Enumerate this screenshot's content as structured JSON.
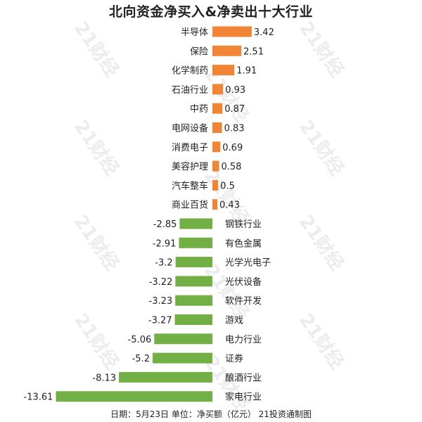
{
  "title": "北向资金净买入&净卖出十大行业",
  "footer": "日期：5月23日 单位：净买额（亿元） 21投资通制图",
  "watermark": "21财经",
  "colors": {
    "positive": "#ef8535",
    "negative": "#72b045"
  },
  "chart_data": {
    "type": "bar",
    "orientation": "horizontal",
    "title": "北向资金净买入&净卖出十大行业",
    "unit": "亿元",
    "categories": [
      "半导体",
      "保险",
      "化学制药",
      "石油行业",
      "中药",
      "电网设备",
      "消费电子",
      "美容护理",
      "汽车整车",
      "商业百货",
      "钢铁行业",
      "有色金属",
      "光学光电子",
      "光伏设备",
      "软件开发",
      "游戏",
      "电力行业",
      "证券",
      "酿酒行业",
      "家电行业"
    ],
    "values": [
      3.42,
      2.51,
      1.91,
      0.93,
      0.87,
      0.83,
      0.69,
      0.58,
      0.5,
      0.43,
      -2.85,
      -2.91,
      -3.2,
      -3.22,
      -3.23,
      -3.27,
      -5.06,
      -5.2,
      -8.13,
      -13.61
    ],
    "value_labels": [
      "3.42",
      "2.51",
      "1.91",
      "0.93",
      "0.87",
      "0.83",
      "0.69",
      "0.58",
      "0.5",
      "0.43",
      "-2.85",
      "-2.91",
      "-3.2",
      "-3.22",
      "-3.23",
      "-3.27",
      "-5.06",
      "-5.2",
      "-8.13",
      "-13.61"
    ],
    "xlim": [
      -13.61,
      3.42
    ],
    "grid": false,
    "legend": "none"
  }
}
